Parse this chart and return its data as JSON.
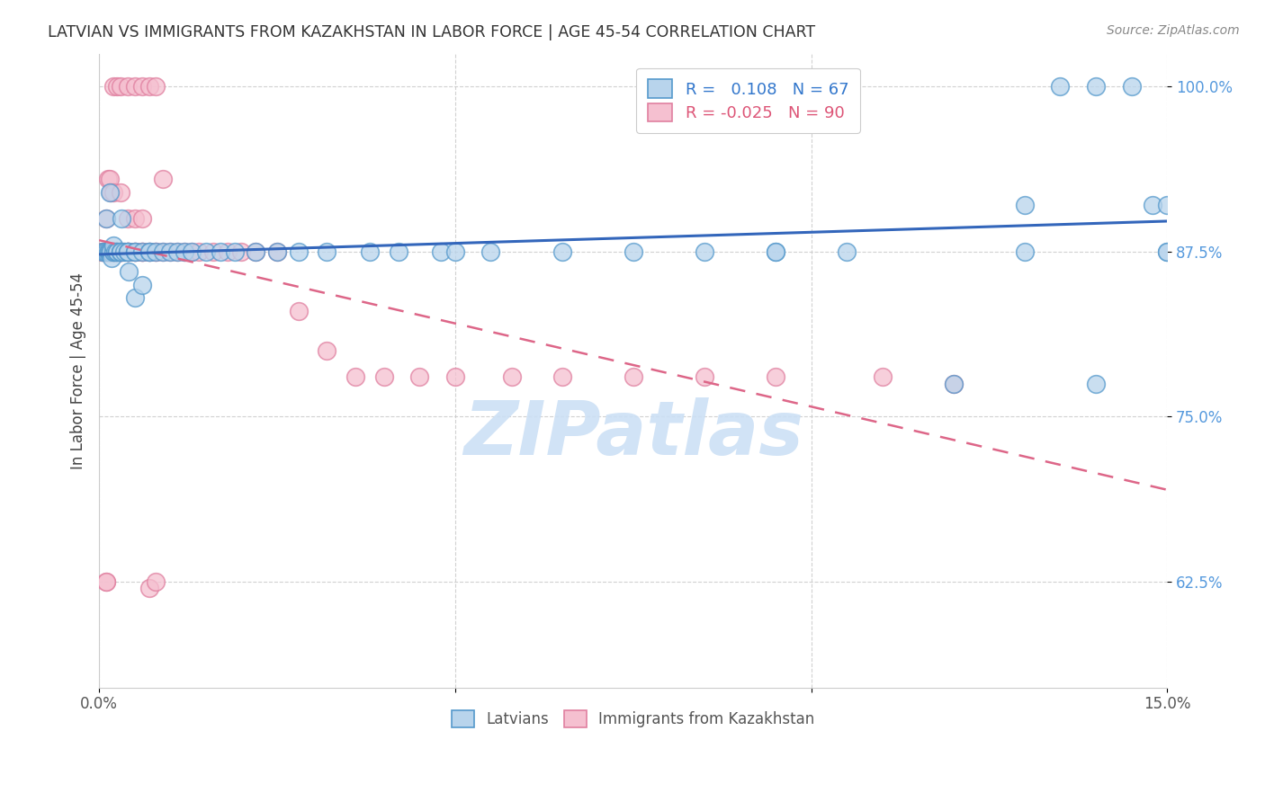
{
  "title": "LATVIAN VS IMMIGRANTS FROM KAZAKHSTAN IN LABOR FORCE | AGE 45-54 CORRELATION CHART",
  "source": "Source: ZipAtlas.com",
  "ylabel": "In Labor Force | Age 45-54",
  "xlim": [
    0.0,
    0.15
  ],
  "ylim": [
    0.545,
    1.025
  ],
  "xticks": [
    0.0,
    0.05,
    0.1,
    0.15
  ],
  "xtick_labels": [
    "0.0%",
    "",
    "",
    "15.0%"
  ],
  "yticks": [
    0.625,
    0.75,
    0.875,
    1.0
  ],
  "ytick_labels": [
    "62.5%",
    "75.0%",
    "87.5%",
    "100.0%"
  ],
  "latvian_R": 0.108,
  "latvian_N": 67,
  "kazakh_R": -0.025,
  "kazakh_N": 90,
  "blue_fill": "#b8d4ec",
  "pink_fill": "#f5c0d0",
  "blue_edge": "#5599cc",
  "pink_edge": "#e080a0",
  "blue_line": "#3366bb",
  "pink_line": "#dd6688",
  "blue_text": "#3377cc",
  "pink_text": "#dd5577",
  "ytick_color": "#5599dd",
  "latvian_x": [
    0.0005,
    0.0008,
    0.001,
    0.001,
    0.0012,
    0.0014,
    0.0015,
    0.0015,
    0.0016,
    0.0018,
    0.002,
    0.002,
    0.002,
    0.0022,
    0.0025,
    0.0025,
    0.003,
    0.003,
    0.003,
    0.0032,
    0.0035,
    0.004,
    0.004,
    0.004,
    0.0042,
    0.005,
    0.005,
    0.005,
    0.006,
    0.006,
    0.007,
    0.007,
    0.008,
    0.009,
    0.01,
    0.011,
    0.012,
    0.013,
    0.015,
    0.017,
    0.019,
    0.022,
    0.025,
    0.028,
    0.032,
    0.038,
    0.042,
    0.048,
    0.055,
    0.065,
    0.075,
    0.085,
    0.095,
    0.105,
    0.12,
    0.13,
    0.135,
    0.14,
    0.145,
    0.148,
    0.15,
    0.15,
    0.15,
    0.13,
    0.14,
    0.095,
    0.05
  ],
  "latvian_y": [
    0.875,
    0.875,
    0.875,
    0.9,
    0.875,
    0.875,
    0.875,
    0.92,
    0.875,
    0.87,
    0.875,
    0.875,
    0.88,
    0.875,
    0.875,
    0.875,
    0.875,
    0.875,
    0.875,
    0.9,
    0.875,
    0.875,
    0.875,
    0.875,
    0.86,
    0.875,
    0.875,
    0.84,
    0.875,
    0.85,
    0.875,
    0.875,
    0.875,
    0.875,
    0.875,
    0.875,
    0.875,
    0.875,
    0.875,
    0.875,
    0.875,
    0.875,
    0.875,
    0.875,
    0.875,
    0.875,
    0.875,
    0.875,
    0.875,
    0.875,
    0.875,
    0.875,
    0.875,
    0.875,
    0.775,
    0.91,
    1.0,
    1.0,
    1.0,
    0.91,
    0.91,
    0.875,
    0.875,
    0.875,
    0.775,
    0.875,
    0.875
  ],
  "kazakh_x": [
    0.0003,
    0.0005,
    0.0006,
    0.0008,
    0.001,
    0.001,
    0.001,
    0.001,
    0.001,
    0.0012,
    0.0014,
    0.0015,
    0.0015,
    0.0016,
    0.0018,
    0.002,
    0.002,
    0.002,
    0.002,
    0.002,
    0.0022,
    0.0024,
    0.0025,
    0.0025,
    0.003,
    0.003,
    0.003,
    0.003,
    0.003,
    0.0032,
    0.0035,
    0.004,
    0.004,
    0.004,
    0.0042,
    0.005,
    0.005,
    0.005,
    0.006,
    0.006,
    0.006,
    0.007,
    0.007,
    0.008,
    0.008,
    0.009,
    0.01,
    0.011,
    0.012,
    0.013,
    0.014,
    0.016,
    0.018,
    0.02,
    0.022,
    0.025,
    0.028,
    0.032,
    0.036,
    0.04,
    0.045,
    0.05,
    0.058,
    0.065,
    0.075,
    0.085,
    0.095,
    0.11,
    0.12,
    0.002,
    0.0025,
    0.003,
    0.004,
    0.005,
    0.006,
    0.007,
    0.008,
    0.009,
    0.0012,
    0.0015,
    0.0016,
    0.002,
    0.003,
    0.004,
    0.005,
    0.006,
    0.007,
    0.008,
    0.001,
    0.001
  ],
  "kazakh_y": [
    0.875,
    0.875,
    0.875,
    0.875,
    0.875,
    0.875,
    0.9,
    0.875,
    0.875,
    0.875,
    0.875,
    0.875,
    0.875,
    0.875,
    0.875,
    0.875,
    0.875,
    0.875,
    0.875,
    0.875,
    0.875,
    0.875,
    0.875,
    0.875,
    0.875,
    0.875,
    0.875,
    0.875,
    0.875,
    0.875,
    0.875,
    0.875,
    0.875,
    0.875,
    0.875,
    0.875,
    0.875,
    0.875,
    0.875,
    0.875,
    0.875,
    0.875,
    0.875,
    0.875,
    0.875,
    0.875,
    0.875,
    0.875,
    0.875,
    0.875,
    0.875,
    0.875,
    0.875,
    0.875,
    0.875,
    0.875,
    0.83,
    0.8,
    0.78,
    0.78,
    0.78,
    0.78,
    0.78,
    0.78,
    0.78,
    0.78,
    0.78,
    0.78,
    0.775,
    1.0,
    1.0,
    1.0,
    1.0,
    1.0,
    1.0,
    1.0,
    1.0,
    0.93,
    0.93,
    0.93,
    0.92,
    0.92,
    0.92,
    0.9,
    0.9,
    0.9,
    0.62,
    0.625,
    0.625,
    0.625
  ],
  "watermark": "ZIPatlas"
}
